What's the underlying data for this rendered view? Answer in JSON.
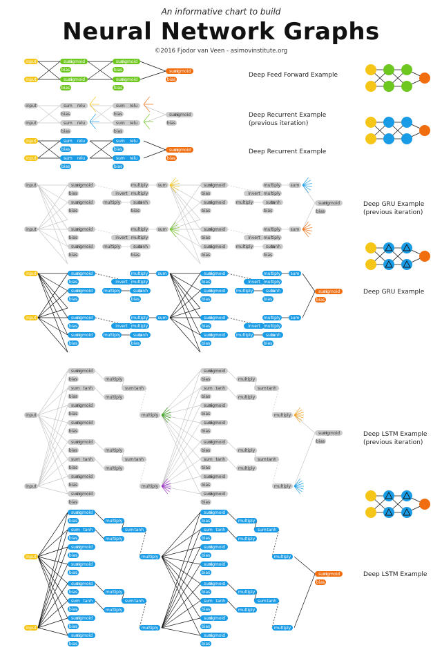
{
  "header": {
    "subtitle": "An informative chart to build",
    "title": "Neural Network Graphs",
    "credit": "©2016 Fjodor van Veen - asimovinstitute.org"
  },
  "colors": {
    "input": "#f5c518",
    "ff": "#6ec71f",
    "blue": "#1a9be6",
    "gray": "#cccccc",
    "out": "#f06d10",
    "line_dark": "#111111",
    "line_gray": "#c8c8c8"
  },
  "node_words": {
    "input": "input",
    "sum": "sum",
    "sigmoid": "sigmoid",
    "relu": "relu",
    "tanh": "tanh",
    "bias": "bias",
    "multiply": "multiply",
    "invert": "invert"
  },
  "sections": [
    {
      "label_lines": [
        "Deep Feed Forward Example"
      ],
      "label_y": 111
    },
    {
      "label_lines": [
        "Deep Recurrent Example",
        "(previous iteration)"
      ],
      "label_y": 169
    },
    {
      "label_lines": [
        "Deep Recurrent Example"
      ],
      "label_y": 222
    },
    {
      "label_lines": [
        "Deep GRU Example",
        "(previous iteration)"
      ],
      "label_y": 298
    },
    {
      "label_lines": [
        "Deep GRU Example"
      ],
      "label_y": 425
    },
    {
      "label_lines": [
        "Deep LSTM Example",
        "(previous iteration)"
      ],
      "label_y": 631
    },
    {
      "label_lines": [
        "Deep LSTM Example"
      ],
      "label_y": 834
    }
  ],
  "mini_networks": [
    {
      "name": "dff",
      "hidden_color": "ff",
      "marker": "none"
    },
    {
      "name": "rnn",
      "hidden_color": "blue",
      "marker": "none"
    },
    {
      "name": "gru",
      "hidden_color": "blue",
      "marker": "triangle"
    },
    {
      "name": "lstm",
      "hidden_color": "blue",
      "marker": "triangle"
    }
  ]
}
